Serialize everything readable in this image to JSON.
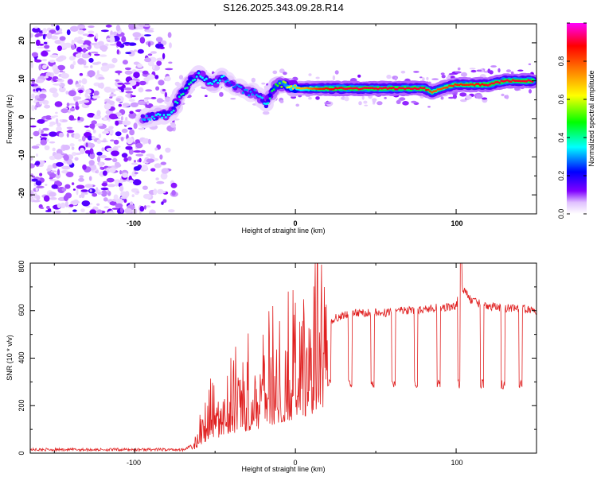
{
  "chart_data": [
    {
      "type": "heatmap",
      "title": "S126.2025.343.09.28.R14",
      "xlabel": "Height of straight line (km)",
      "ylabel": "Frequency (Hz)",
      "xlim": [
        -165,
        150
      ],
      "ylim": [
        -25,
        25
      ],
      "xticks": [
        "-100",
        "0",
        "100"
      ],
      "yticks": [
        "-20",
        "-10",
        "0",
        "10",
        "20"
      ],
      "colorbar": {
        "label": "Normalized spectral amplitude",
        "range": [
          0,
          1
        ],
        "ticks": [
          "0.0",
          "0.2",
          "0.4",
          "0.6",
          "0.8"
        ],
        "colors": [
          "#ffffff",
          "#8000ff",
          "#0000ff",
          "#00ffff",
          "#00ff00",
          "#ffff00",
          "#ff8000",
          "#ff0000",
          "#ff00ff"
        ]
      },
      "ridge": {
        "x": [
          -95,
          -85,
          -78,
          -72,
          -65,
          -60,
          -52,
          -45,
          -40,
          -35,
          -30,
          -25,
          -18,
          -12,
          -5,
          0,
          5,
          15,
          30,
          50,
          70,
          80,
          85,
          90,
          100,
          110,
          120,
          130,
          140,
          148
        ],
        "frequency": [
          0,
          1,
          1,
          6,
          10,
          12,
          9,
          11,
          9,
          8,
          7,
          7,
          4,
          9,
          9,
          8,
          8,
          8,
          8,
          8,
          8,
          8,
          7,
          8,
          9,
          9,
          9,
          10,
          10,
          10
        ],
        "amplitude": [
          0.3,
          0.35,
          0.35,
          0.4,
          0.4,
          0.35,
          0.35,
          0.35,
          0.25,
          0.3,
          0.3,
          0.3,
          0.35,
          0.5,
          0.6,
          0.7,
          0.7,
          0.85,
          0.9,
          0.9,
          0.9,
          0.9,
          0.8,
          0.8,
          0.85,
          0.85,
          0.9,
          0.9,
          0.9,
          0.9
        ]
      },
      "noise_region_x": [
        -165,
        -75
      ]
    },
    {
      "type": "line",
      "xlabel": "Height of straight line (km)",
      "ylabel": "SNR (10 * v/v)",
      "xlim": [
        -165,
        150
      ],
      "ylim": [
        0,
        800
      ],
      "xticks": [
        "-100",
        "0",
        "100"
      ],
      "yticks": [
        "0",
        "200",
        "400",
        "600",
        "800"
      ],
      "color": "#e02020",
      "series": [
        {
          "name": "SNR",
          "x": [
            -165,
            -110,
            -70,
            -62,
            -55,
            -45,
            -35,
            -25,
            -15,
            -5,
            5,
            15,
            20,
            25,
            35,
            45,
            55,
            65,
            75,
            85,
            95,
            100,
            103,
            110,
            120,
            130,
            140,
            150
          ],
          "y": [
            15,
            15,
            15,
            40,
            150,
            200,
            250,
            280,
            330,
            380,
            440,
            500,
            540,
            570,
            590,
            590,
            590,
            600,
            600,
            610,
            615,
            620,
            700,
            640,
            620,
            610,
            610,
            600
          ]
        }
      ],
      "dropouts_x": [
        20,
        33,
        47,
        60,
        74,
        88,
        101,
        115,
        128,
        139
      ],
      "dropout_level": 290
    }
  ]
}
